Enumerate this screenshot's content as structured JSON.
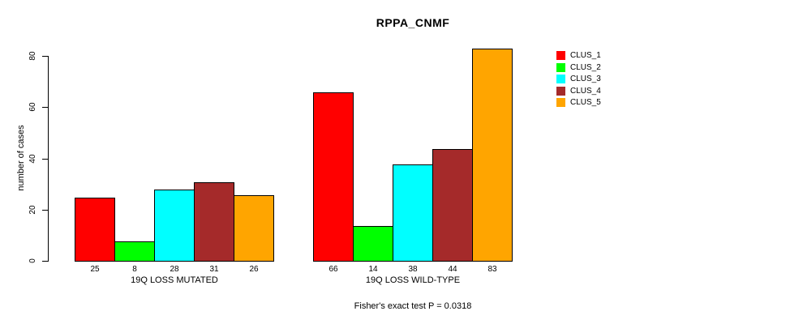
{
  "chart_data": {
    "type": "bar",
    "title": "RPPA_CNMF",
    "ylabel": "number of cases",
    "xlabel": "",
    "ylim": [
      0,
      80
    ],
    "yticks": [
      0,
      20,
      40,
      60,
      80
    ],
    "grid": false,
    "legend_position": "right",
    "categories": [
      "19Q LOSS MUTATED",
      "19Q LOSS WILD-TYPE"
    ],
    "series": [
      {
        "name": "CLUS_1",
        "color": "#FF0000",
        "values": [
          25,
          66
        ]
      },
      {
        "name": "CLUS_2",
        "color": "#00FF00",
        "values": [
          8,
          14
        ]
      },
      {
        "name": "CLUS_3",
        "color": "#00FFFF",
        "values": [
          28,
          38
        ]
      },
      {
        "name": "CLUS_4",
        "color": "#A52A2A",
        "values": [
          31,
          44
        ]
      },
      {
        "name": "CLUS_5",
        "color": "#FFA500",
        "values": [
          26,
          83
        ]
      }
    ],
    "bar_value_labels": [
      [
        25,
        8,
        28,
        31,
        26
      ],
      [
        66,
        14,
        38,
        44,
        83
      ]
    ],
    "annotation": "Fisher's exact test P = 0.0318"
  }
}
